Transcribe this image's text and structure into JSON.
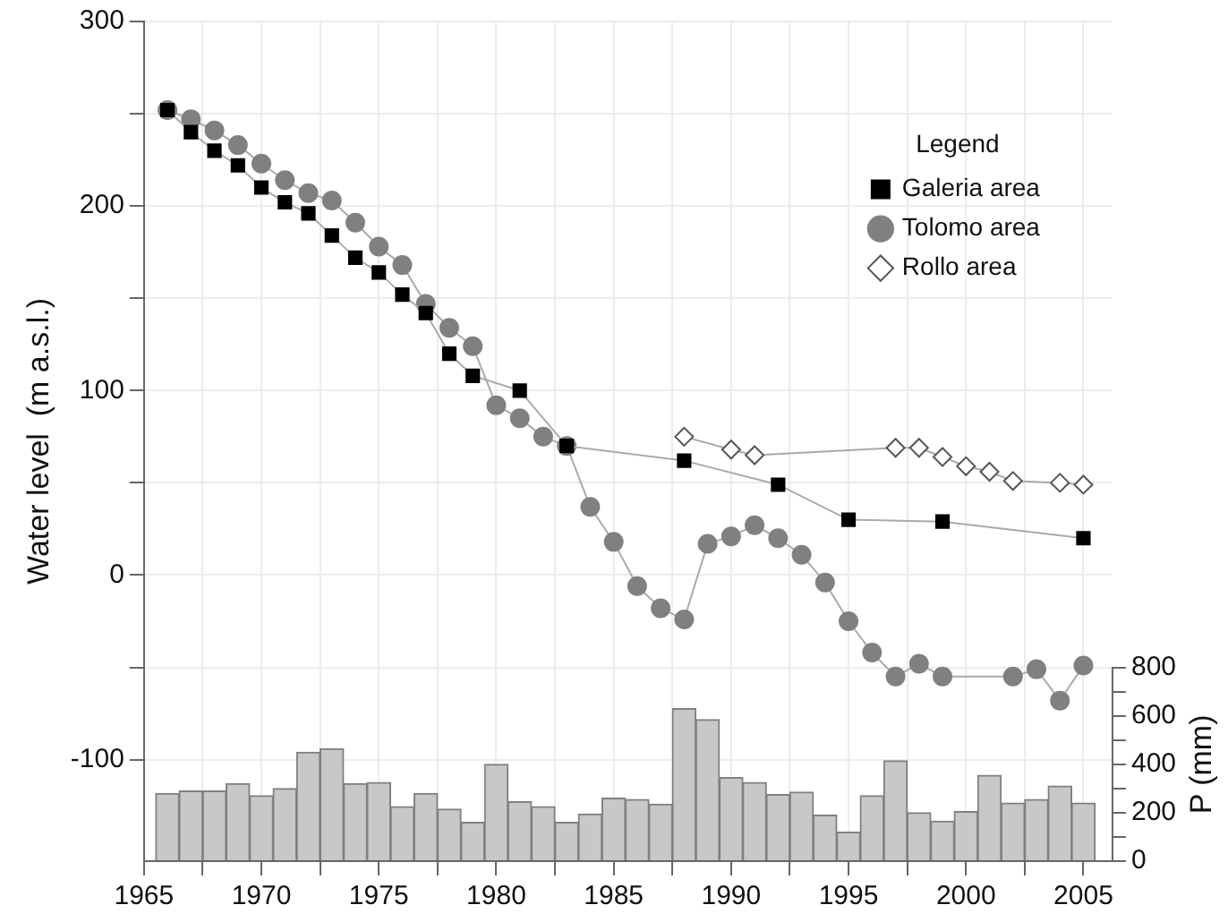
{
  "chart_data": {
    "type": "line",
    "ylabel": "Water level  (m a.s.l.)",
    "y2label": "P (mm)",
    "legend_title": "Legend",
    "legend": "top right",
    "grid": true,
    "xlim": [
      1965,
      2006.2
    ],
    "xticks": [
      1965,
      {
        "value": 1967.5,
        "label": null
      },
      1970,
      {
        "value": 1972.5,
        "label": null
      },
      1975,
      {
        "value": 1977.5,
        "label": null
      },
      1980,
      {
        "value": 1982.5,
        "label": null
      },
      1985,
      {
        "value": 1987.5,
        "label": null
      },
      1990,
      {
        "value": 1992.5,
        "label": null
      },
      1995,
      {
        "value": 1997.5,
        "label": null
      },
      2000,
      {
        "value": 2002.5,
        "label": null
      },
      2005
    ],
    "ylim": [
      -155,
      300
    ],
    "yticks": [
      -100,
      {
        "value": -50,
        "label": null
      },
      0,
      {
        "value": 50,
        "label": null
      },
      100,
      {
        "value": 150,
        "label": null
      },
      200,
      {
        "value": 250,
        "label": null
      },
      300
    ],
    "y2lim": [
      0,
      3470
    ],
    "y2ticks": [
      0,
      {
        "value": 100,
        "label": null
      },
      200,
      {
        "value": 300,
        "label": null
      },
      400,
      {
        "value": 500,
        "label": null
      },
      600,
      {
        "value": 700,
        "label": null
      },
      800
    ],
    "series": [
      {
        "type": "bar",
        "axis": "y2",
        "color": "#c8c8c8",
        "x": [
          1966,
          1967,
          1968,
          1969,
          1970,
          1971,
          1972,
          1973,
          1974,
          1975,
          1976,
          1977,
          1978,
          1979,
          1980,
          1981,
          1982,
          1983,
          1984,
          1985,
          1986,
          1987,
          1988,
          1989,
          1990,
          1991,
          1992,
          1993,
          1994,
          1995,
          1996,
          1997,
          1998,
          1999,
          2000,
          2001,
          2002,
          2003,
          2004,
          2005
        ],
        "values": [
          280,
          290,
          290,
          320,
          270,
          300,
          450,
          465,
          320,
          325,
          225,
          280,
          215,
          160,
          400,
          245,
          225,
          160,
          195,
          260,
          255,
          235,
          630,
          585,
          345,
          325,
          275,
          285,
          190,
          120,
          270,
          415,
          200,
          165,
          205,
          355,
          240,
          255,
          310,
          240
        ]
      },
      {
        "name": "Galeria area",
        "color": "#000000",
        "marker": "square",
        "x": [
          1966,
          1967,
          1968,
          1969,
          1970,
          1971,
          1972,
          1973,
          1974,
          1975,
          1976,
          1977,
          1978,
          1979,
          1981,
          1983,
          1988,
          1992,
          1995,
          1999,
          2005
        ],
        "values": [
          252,
          240,
          230,
          222,
          210,
          202,
          196,
          184,
          172,
          164,
          152,
          142,
          120,
          108,
          100,
          70,
          62,
          49,
          30,
          29,
          20
        ]
      },
      {
        "name": "Tolomo area",
        "color": "#808080",
        "marker": "circle",
        "x": [
          1966,
          1967,
          1968,
          1969,
          1970,
          1971,
          1972,
          1973,
          1974,
          1975,
          1976,
          1977,
          1978,
          1979,
          1980,
          1981,
          1982,
          1983,
          1984,
          1985,
          1986,
          1987,
          1988,
          1989,
          1990,
          1991,
          1992,
          1993,
          1994,
          1995,
          1996,
          1997,
          1998,
          1999,
          2002,
          2003,
          2004,
          2005
        ],
        "values": [
          252,
          247,
          241,
          233,
          223,
          214,
          207,
          203,
          191,
          178,
          168,
          147,
          134,
          124,
          92,
          85,
          75,
          70,
          37,
          18,
          -6,
          -18,
          -24,
          17,
          21,
          27,
          20,
          11,
          -4,
          -25,
          -42,
          -55,
          -48,
          -55,
          -55,
          -51,
          -68,
          -49
        ]
      },
      {
        "name": "Rollo area",
        "color": "#ffffff",
        "marker": "diamond",
        "x": [
          1988,
          1990,
          1991,
          1997,
          1998,
          1999,
          2000,
          2001,
          2002,
          2004,
          2005
        ],
        "values": [
          75,
          68,
          65,
          69,
          69,
          64,
          59,
          56,
          51,
          50,
          49
        ]
      }
    ]
  }
}
